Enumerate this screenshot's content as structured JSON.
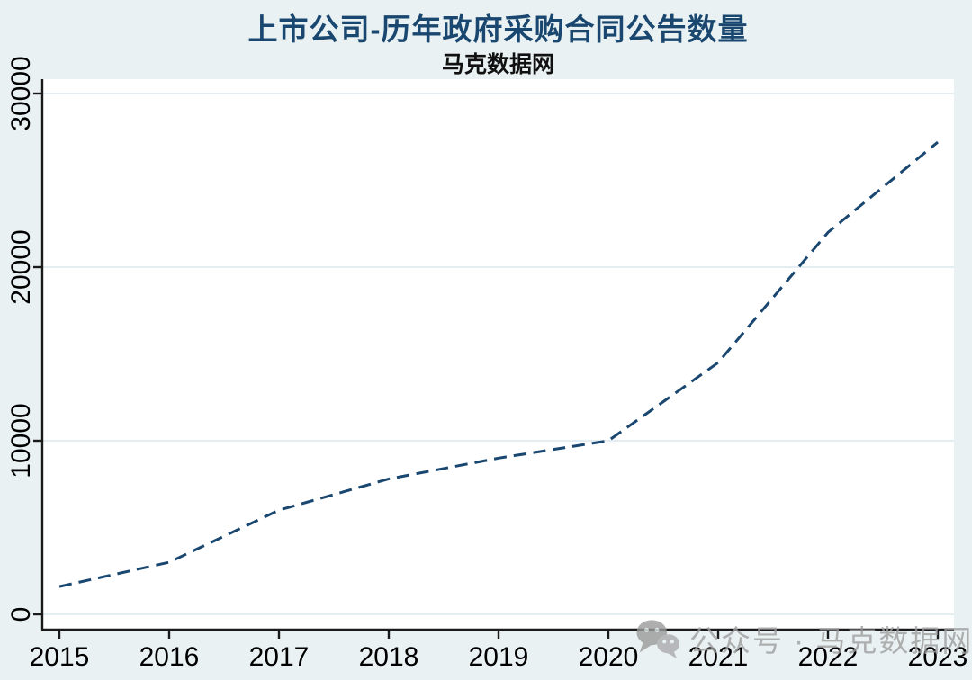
{
  "page": {
    "background": "#e9f1f2"
  },
  "header": {
    "title": "上市公司-历年政府采购合同公告数量",
    "subtitle": "马克数据网"
  },
  "watermark": {
    "icon": "wechat-icon",
    "text": "公众号 · 马克数据网",
    "color": "#9f9f9f"
  },
  "chart_data": {
    "type": "line",
    "title": "上市公司-历年政府采购合同公告数量",
    "subtitle": "马克数据网",
    "x": [
      2015,
      2016,
      2017,
      2018,
      2019,
      2020,
      2021,
      2022,
      2023
    ],
    "values": [
      1600,
      3000,
      6000,
      7800,
      9000,
      10000,
      14500,
      22000,
      27200
    ],
    "xlabel": "",
    "ylabel": "",
    "xticks": [
      2015,
      2016,
      2017,
      2018,
      2019,
      2020,
      2021,
      2022,
      2023
    ],
    "yticks": [
      0,
      10000,
      20000,
      30000
    ],
    "ylim": [
      0,
      30800
    ],
    "grid": "horizontal",
    "legend": "none",
    "line_style": "dashed",
    "line_color": "#1a476f",
    "plot_background": "#ffffff",
    "grid_color": "#dce9ed",
    "axis_color": "#1a1a1a"
  }
}
